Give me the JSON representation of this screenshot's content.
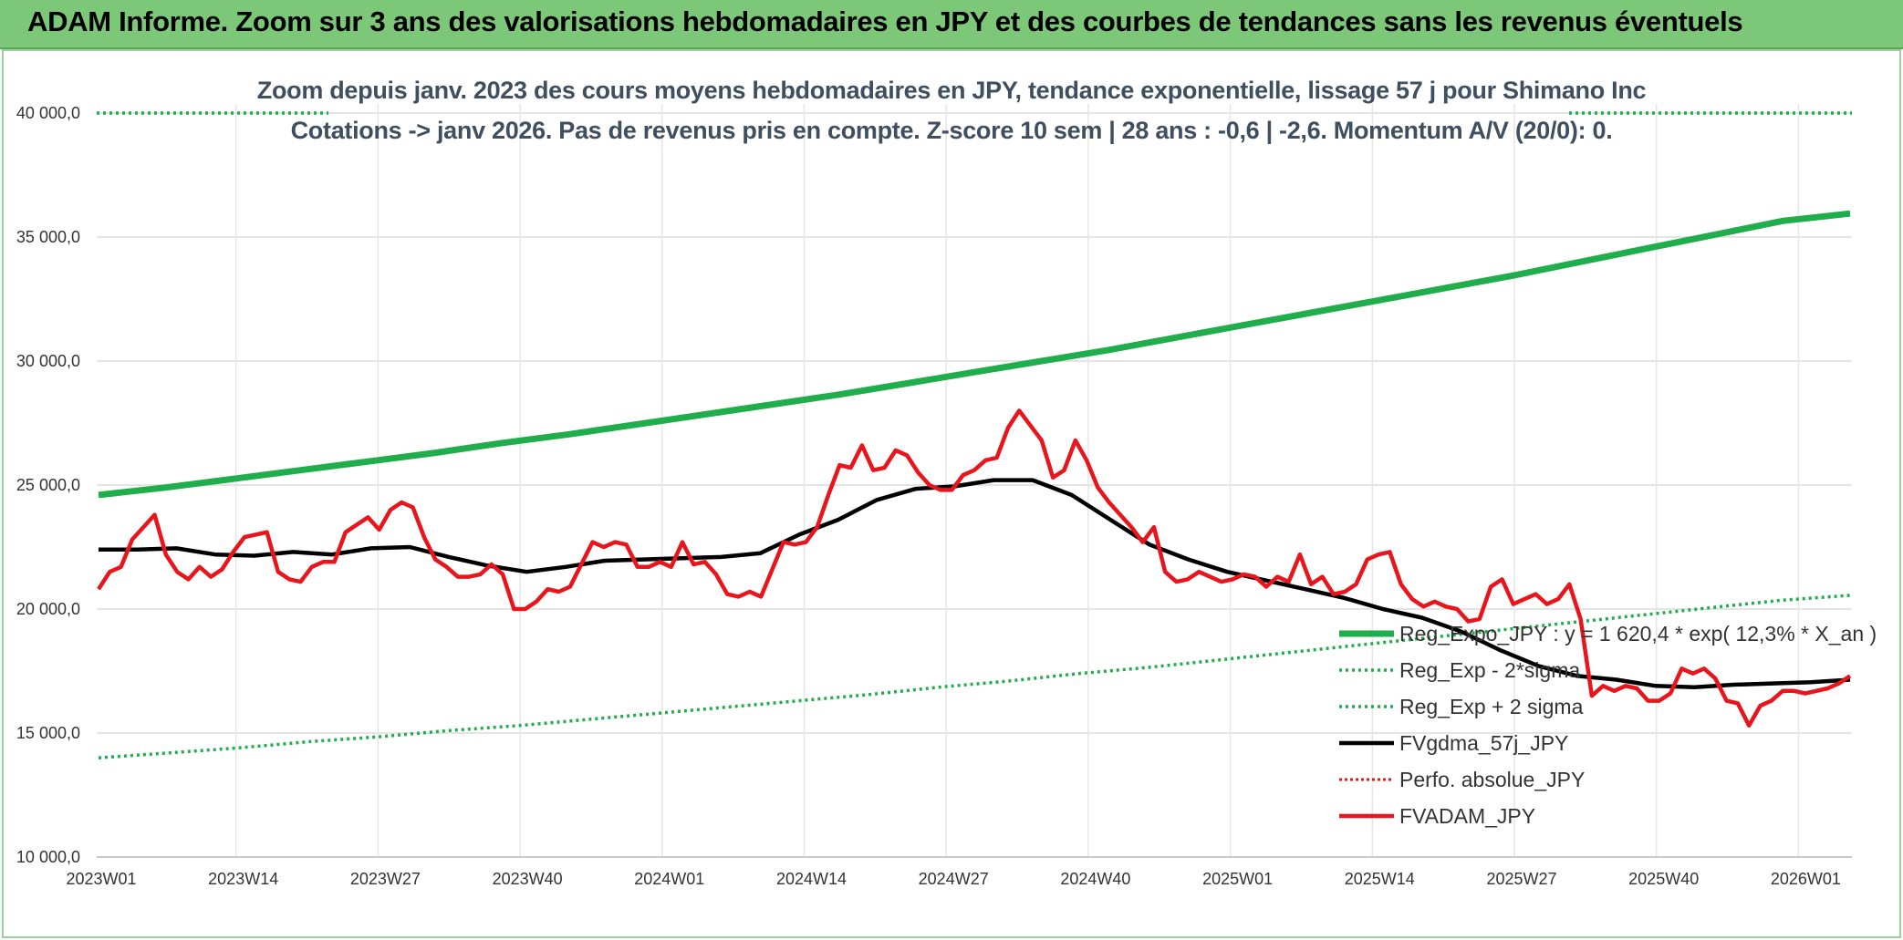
{
  "banner": {
    "title": "ADAM Informe. Zoom sur 3 ans des valorisations hebdomadaires en JPY et des courbes de tendances sans les revenus éventuels"
  },
  "colors": {
    "banner": "#7cc878",
    "trend": "#1fae4b",
    "price": "#e8151c",
    "gdma": "#000000"
  },
  "chart_data": {
    "type": "line",
    "title": "Zoom depuis janv. 2023 des cours moyens hebdomadaires en JPY, tendance exponentielle, lissage 57 j pour Shimano Inc",
    "subtitle": "Cotations -> janv 2026. Pas de revenus pris en compte. Z-score 10 sem | 28 ans : -0,6 | -2,6. Momentum A/V (20/0): 0.",
    "x_ticks": [
      "2023W01",
      "2023W14",
      "2023W27",
      "2023W40",
      "2024W01",
      "2024W14",
      "2024W27",
      "2024W40",
      "2025W01",
      "2025W14",
      "2025W27",
      "2025W40",
      "2026W01"
    ],
    "y_ticks": [
      "10 000,0",
      "15 000,0",
      "20 000,0",
      "25 000,0",
      "30 000,0",
      "35 000,0",
      "40 000,0"
    ],
    "ylim": [
      10000,
      40000
    ],
    "grid": true,
    "legend_position": "bottom-right",
    "series": [
      {
        "name": "Reg_Expo_JPY : y = 1 620,4 * exp( 12,3% *  X_an )",
        "style": "solid-thick-green",
        "values": [
          24600,
          24900,
          25250,
          25600,
          25950,
          26300,
          26700,
          27050,
          27450,
          27850,
          28250,
          28650,
          29100,
          29550,
          30000,
          30450,
          30950,
          31450,
          31950,
          32450,
          32950,
          33450,
          34000,
          34550,
          35100,
          35650,
          35950
        ]
      },
      {
        "name": "Reg_Exp - 2*sigma",
        "style": "dotted-green",
        "values": [
          14000,
          14200,
          14400,
          14650,
          14850,
          15100,
          15300,
          15550,
          15800,
          16050,
          16300,
          16550,
          16850,
          17100,
          17400,
          17650,
          17950,
          18250,
          18550,
          18850,
          19150,
          19450,
          19750,
          20050,
          20350,
          20550
        ]
      },
      {
        "name": "Reg_Exp + 2 sigma",
        "style": "dotted-green",
        "values": [
          40000,
          40000
        ]
      },
      {
        "name": "FVgdma_57j_JPY",
        "style": "solid-black",
        "values": [
          22400,
          22400,
          22450,
          22200,
          22150,
          22300,
          22200,
          22450,
          22500,
          22100,
          21750,
          21500,
          21700,
          21950,
          22000,
          22050,
          22100,
          22250,
          23000,
          23600,
          24400,
          24850,
          24950,
          25200,
          25200,
          24600,
          23600,
          22600,
          22000,
          21500,
          21150,
          20800,
          20450,
          20000,
          19650,
          19100,
          18350,
          17700,
          17300,
          17150,
          16900,
          16850,
          16950,
          17000,
          17050,
          17150
        ]
      },
      {
        "name": "Perfo. absolue_JPY",
        "style": "dotted-red",
        "values": []
      },
      {
        "name": "FVADAM_JPY",
        "style": "solid-thick-red",
        "values": [
          20800,
          21500,
          21700,
          22800,
          23300,
          23800,
          22200,
          21500,
          21200,
          21700,
          21300,
          21600,
          22300,
          22900,
          23000,
          23100,
          21500,
          21200,
          21100,
          21700,
          21900,
          21900,
          23100,
          23400,
          23700,
          23200,
          24000,
          24300,
          24100,
          22900,
          22000,
          21700,
          21300,
          21300,
          21400,
          21800,
          21400,
          20000,
          20000,
          20300,
          20800,
          20700,
          20900,
          21800,
          22700,
          22500,
          22700,
          22600,
          21700,
          21700,
          21900,
          21700,
          22700,
          21800,
          21900,
          21400,
          20600,
          20500,
          20700,
          20500,
          21600,
          22700,
          22600,
          22700,
          23300,
          24600,
          25800,
          25700,
          26600,
          25600,
          25700,
          26400,
          26200,
          25500,
          25000,
          24800,
          24800,
          25400,
          25600,
          26000,
          26100,
          27300,
          28000,
          27400,
          26800,
          25300,
          25600,
          26800,
          26000,
          24900,
          24300,
          23800,
          23300,
          22700,
          23300,
          21500,
          21100,
          21200,
          21500,
          21300,
          21100,
          21200,
          21400,
          21300,
          20900,
          21300,
          21100,
          22200,
          21000,
          21300,
          20600,
          20700,
          21000,
          22000,
          22200,
          22300,
          21000,
          20400,
          20100,
          20300,
          20100,
          20000,
          19500,
          19600,
          20900,
          21200,
          20200,
          20400,
          20600,
          20200,
          20400,
          21000,
          19600,
          16500,
          16900,
          16700,
          16900,
          16800,
          16300,
          16300,
          16600,
          17600,
          17400,
          17600,
          17200,
          16300,
          16200,
          15300,
          16100,
          16300,
          16700,
          16700,
          16600,
          16700,
          16800,
          17000,
          17300
        ]
      }
    ]
  }
}
